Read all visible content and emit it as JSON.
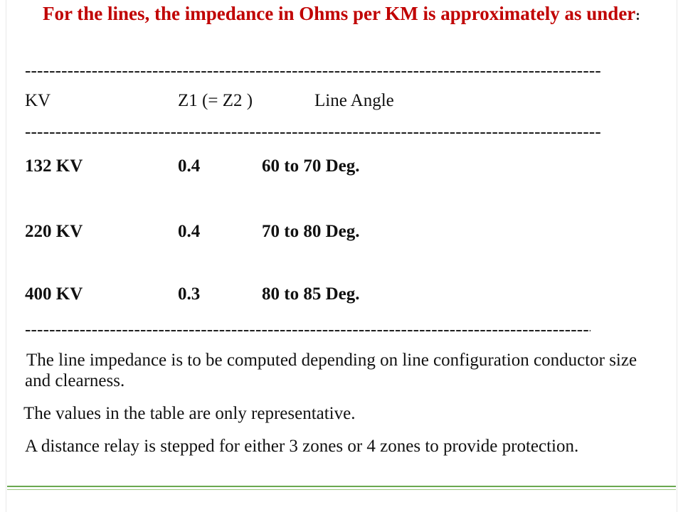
{
  "slide": {
    "title": "For the lines, the impedance in Ohms per KM is approximately as under",
    "title_suffix": ":",
    "separators": [
      "----------------------------------------------------------------------------------------------------",
      "----------------------------------------------------------------------------------------------------",
      "----------------------------------------------------------------------------------------------------"
    ],
    "table": {
      "header": [
        "KV",
        "Z1 (= Z2 )",
        "Line Angle"
      ],
      "rows": [
        [
          "132 KV",
          "0.4",
          "60 to 70 Deg."
        ],
        [
          "220 KV",
          "0.4",
          "70 to 80 Deg."
        ],
        [
          "400 KV",
          "0.3",
          "80 to 85 Deg."
        ]
      ]
    },
    "paragraphs": [
      "The line impedance is to be computed depending on line configuration conductor size    and      clearness.",
      "The values in the table are only representative.",
      "A distance relay is stepped for either 3 zones or 4 zones to provide protection."
    ]
  }
}
